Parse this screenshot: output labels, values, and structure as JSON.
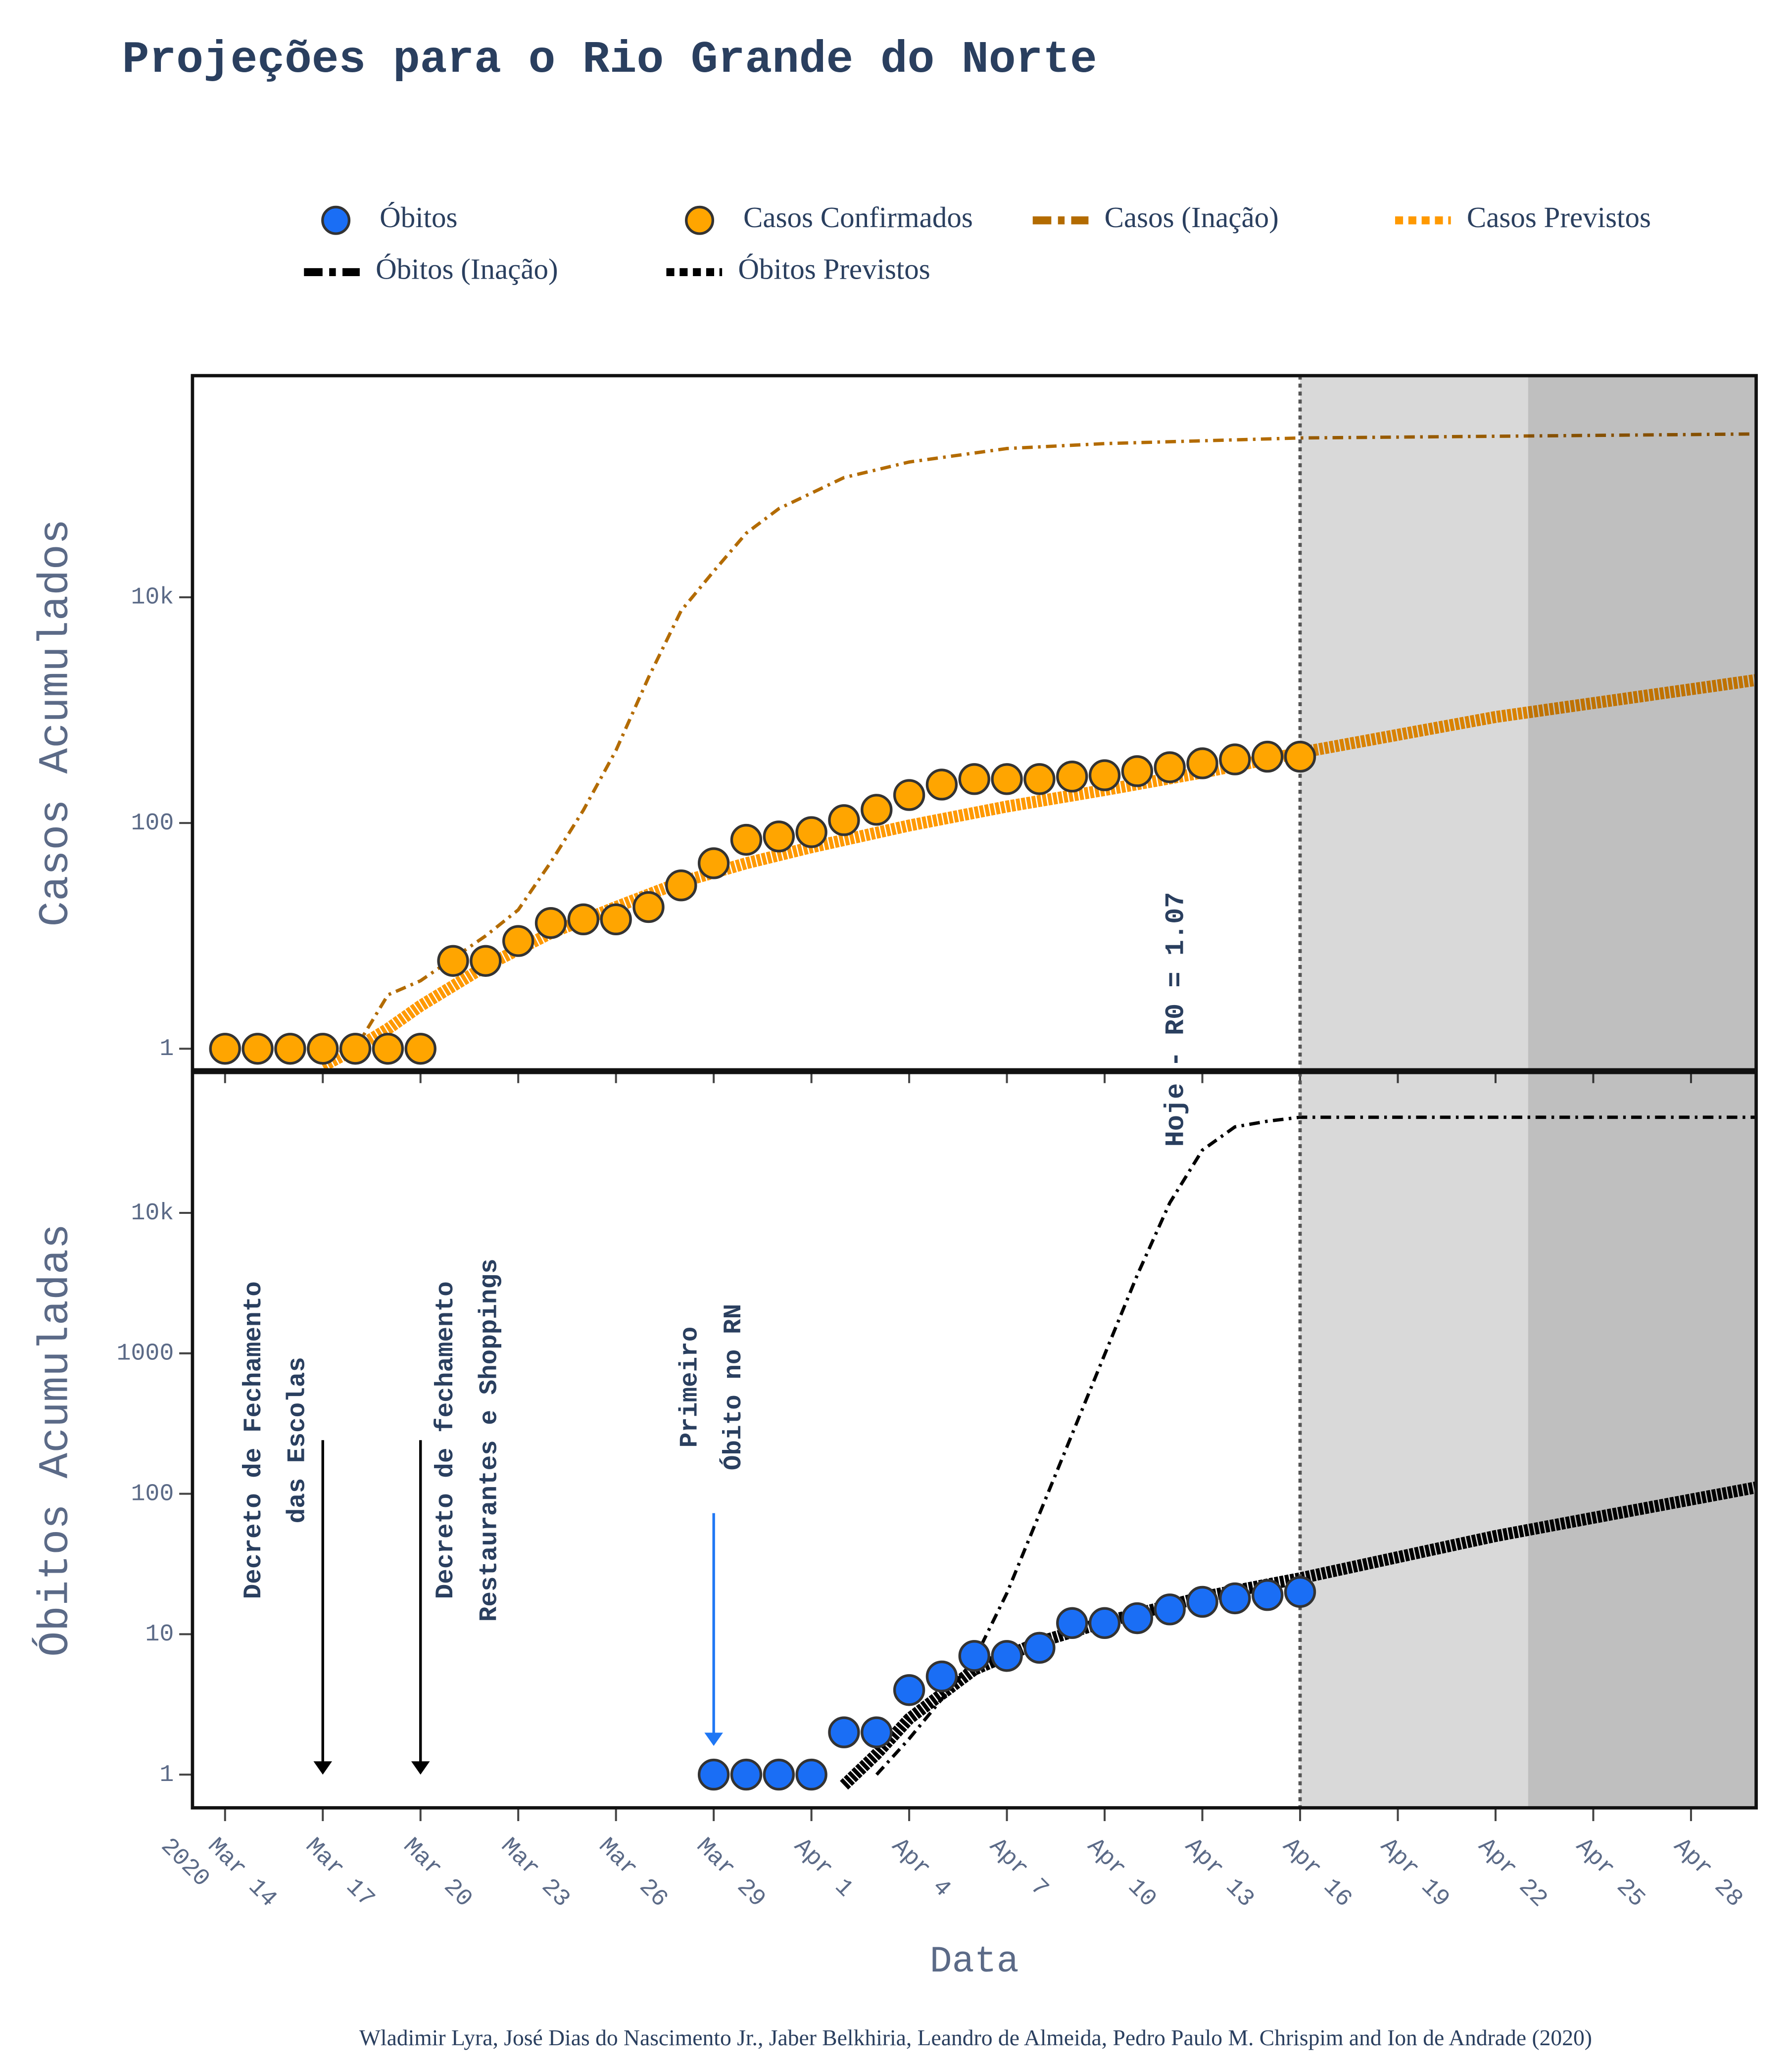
{
  "title": "Projeções para o Rio Grande do Norte",
  "x_label": "Data",
  "credit": "Wladimir Lyra, José Dias do Nascimento Jr., Jaber Belkhiria, Leandro de Almeida, Pedro Paulo M. Chrispim and Ion de Andrade (2020)",
  "today": {
    "x": "2020-04-16",
    "label": "Hoje - R0 = 1.07"
  },
  "shaded_regions": [
    {
      "from": "2020-04-16",
      "to": "2020-04-23",
      "color": "#000000",
      "opacity": 0.15
    },
    {
      "from": "2020-04-23",
      "to": "2020-04-30",
      "color": "#000000",
      "opacity": 0.25
    }
  ],
  "xlim": [
    "2020-03-13",
    "2020-04-30"
  ],
  "xticks": [
    {
      "value": "2020-03-14",
      "label": [
        "Mar 14",
        "2020"
      ]
    },
    {
      "value": "2020-03-17",
      "label": [
        "Mar 17"
      ]
    },
    {
      "value": "2020-03-20",
      "label": [
        "Mar 20"
      ]
    },
    {
      "value": "2020-03-23",
      "label": [
        "Mar 23"
      ]
    },
    {
      "value": "2020-03-26",
      "label": [
        "Mar 26"
      ]
    },
    {
      "value": "2020-03-29",
      "label": [
        "Mar 29"
      ]
    },
    {
      "value": "2020-04-01",
      "label": [
        "Apr 1"
      ]
    },
    {
      "value": "2020-04-04",
      "label": [
        "Apr 4"
      ]
    },
    {
      "value": "2020-04-07",
      "label": [
        "Apr 7"
      ]
    },
    {
      "value": "2020-04-10",
      "label": [
        "Apr 10"
      ]
    },
    {
      "value": "2020-04-13",
      "label": [
        "Apr 13"
      ]
    },
    {
      "value": "2020-04-16",
      "label": [
        "Apr 16"
      ]
    },
    {
      "value": "2020-04-19",
      "label": [
        "Apr 19"
      ]
    },
    {
      "value": "2020-04-22",
      "label": [
        "Apr 22"
      ]
    },
    {
      "value": "2020-04-25",
      "label": [
        "Apr 25"
      ]
    },
    {
      "value": "2020-04-28",
      "label": [
        "Apr 28"
      ]
    }
  ],
  "chart_data": [
    {
      "type": "line",
      "y_label": "Casos Acumulados",
      "log_y": true,
      "ylim": [
        0.65,
        920000
      ],
      "yticks": [
        1,
        100,
        {
          "value": 10000,
          "label": "10k"
        }
      ],
      "series": [
        {
          "name": "Casos (Inação)",
          "mode": "dashdot",
          "color": "#b36b00",
          "x": [
            "2020-03-18",
            "2020-03-19",
            "2020-03-20",
            "2020-03-22",
            "2020-03-23",
            "2020-03-24",
            "2020-03-25",
            "2020-03-26",
            "2020-03-27",
            "2020-03-28",
            "2020-03-29",
            "2020-03-30",
            "2020-03-31",
            "2020-04-02",
            "2020-04-04",
            "2020-04-07",
            "2020-04-10",
            "2020-04-16",
            "2020-04-30"
          ],
          "values": [
            1,
            3,
            4,
            10,
            17,
            45,
            130,
            440,
            1950,
            7600,
            17000,
            37000,
            61000,
            115000,
            158000,
            208000,
            230000,
            258000,
            280000
          ]
        },
        {
          "name": "Casos Previstos",
          "mode": "dotted",
          "color": "#ff9900",
          "x": [
            "2020-03-17",
            "2020-03-18",
            "2020-03-19",
            "2020-03-20",
            "2020-03-22",
            "2020-03-24",
            "2020-03-26",
            "2020-03-28",
            "2020-03-30",
            "2020-04-01",
            "2020-04-04",
            "2020-04-07",
            "2020-04-10",
            "2020-04-13",
            "2020-04-16",
            "2020-04-22",
            "2020-04-30"
          ],
          "values": [
            0.7,
            1,
            1.5,
            2.4,
            5.4,
            10.6,
            18,
            30,
            44,
            61,
            95,
            140,
            196,
            280,
            420,
            870,
            1850
          ]
        },
        {
          "name": "Casos Confirmados",
          "mode": "markers",
          "color": "#ffa500",
          "x": [
            "2020-03-14",
            "2020-03-15",
            "2020-03-16",
            "2020-03-17",
            "2020-03-18",
            "2020-03-19",
            "2020-03-20",
            "2020-03-21",
            "2020-03-22",
            "2020-03-23",
            "2020-03-24",
            "2020-03-25",
            "2020-03-26",
            "2020-03-27",
            "2020-03-28",
            "2020-03-29",
            "2020-03-30",
            "2020-03-31",
            "2020-04-01",
            "2020-04-02",
            "2020-04-03",
            "2020-04-04",
            "2020-04-05",
            "2020-04-06",
            "2020-04-07",
            "2020-04-08",
            "2020-04-09",
            "2020-04-10",
            "2020-04-11",
            "2020-04-12",
            "2020-04-13",
            "2020-04-14",
            "2020-04-15",
            "2020-04-16"
          ],
          "values": [
            1,
            1,
            1,
            1,
            1,
            1,
            1,
            6,
            6,
            9,
            13,
            14,
            14,
            18,
            28,
            44,
            71,
            76,
            83,
            106,
            131,
            177,
            219,
            245,
            245,
            245,
            258,
            265,
            288,
            312,
            338,
            366,
            387,
            387
          ]
        }
      ]
    },
    {
      "type": "line",
      "y_label": "Óbitos Acumuladas",
      "log_y": true,
      "ylim": [
        0.58,
        100000
      ],
      "yticks": [
        1,
        10,
        100,
        1000,
        {
          "value": 10000,
          "label": "10k"
        }
      ],
      "annotations": [
        {
          "x": "2020-03-17",
          "y": 1,
          "lines": [
            "Decreto de Fechamento",
            "das Escolas"
          ],
          "color": "#000000"
        },
        {
          "x": "2020-03-20",
          "y": 1,
          "lines": [
            "Decreto de fechamento",
            "Restaurantes e Shoppings"
          ],
          "color": "#000000"
        },
        {
          "x": "2020-03-29",
          "y": 1.6,
          "lines": [
            "Primeiro",
            "Óbito no RN"
          ],
          "color": "#1f77f4"
        }
      ],
      "series": [
        {
          "name": "Óbitos (Inação)",
          "mode": "dashdot",
          "color": "#000000",
          "x": [
            "2020-04-03",
            "2020-04-04",
            "2020-04-06",
            "2020-04-07",
            "2020-04-08",
            "2020-04-09",
            "2020-04-10",
            "2020-04-11",
            "2020-04-12",
            "2020-04-13",
            "2020-04-14",
            "2020-04-15",
            "2020-04-16",
            "2020-04-30"
          ],
          "values": [
            1,
            1.8,
            6.6,
            19.6,
            72,
            265,
            980,
            3600,
            11800,
            28000,
            41000,
            45000,
            48000,
            48000
          ]
        },
        {
          "name": "Óbitos Previstos",
          "mode": "dotted",
          "color": "#000000",
          "x": [
            "2020-04-02",
            "2020-04-03",
            "2020-04-04",
            "2020-04-06",
            "2020-04-08",
            "2020-04-10",
            "2020-04-13",
            "2020-04-16",
            "2020-04-22",
            "2020-04-30"
          ],
          "values": [
            0.84,
            1.4,
            2.5,
            5.6,
            8.8,
            12.2,
            18.4,
            25,
            50,
            111
          ]
        },
        {
          "name": "Óbitos",
          "mode": "markers",
          "color": "#1a6ef5",
          "x": [
            "2020-03-29",
            "2020-03-30",
            "2020-03-31",
            "2020-04-01",
            "2020-04-02",
            "2020-04-03",
            "2020-04-04",
            "2020-04-05",
            "2020-04-06",
            "2020-04-07",
            "2020-04-08",
            "2020-04-09",
            "2020-04-10",
            "2020-04-11",
            "2020-04-12",
            "2020-04-13",
            "2020-04-14",
            "2020-04-15",
            "2020-04-16"
          ],
          "values": [
            1,
            1,
            1,
            1,
            2,
            2,
            4,
            5,
            7,
            7,
            8,
            12,
            12,
            13,
            15,
            17,
            18,
            19,
            20
          ]
        }
      ]
    }
  ]
}
